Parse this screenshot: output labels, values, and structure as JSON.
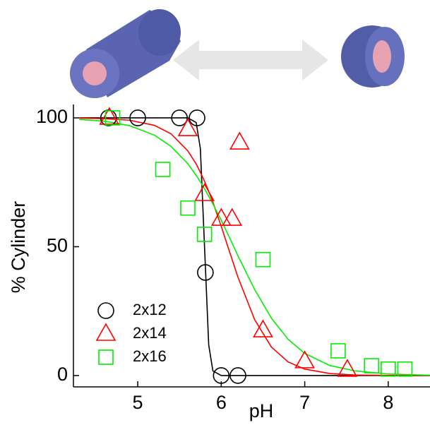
{
  "chart_data": {
    "type": "scatter",
    "xlabel": "pH",
    "ylabel": "% Cylinder",
    "xlim": [
      4.23,
      8.5
    ],
    "ylim": [
      -4.4,
      105.2
    ],
    "xticks": [
      5,
      6,
      7,
      8
    ],
    "yticks": [
      0,
      50,
      100
    ],
    "grid": false,
    "legend": "lower left",
    "series": [
      {
        "name": "2x12",
        "color": "#000000",
        "marker": "circle",
        "x": [
          4.65,
          5.0,
          5.5,
          5.71,
          5.81,
          6.0,
          6.2
        ],
        "values": [
          100,
          100,
          100,
          100,
          40,
          0,
          0
        ]
      },
      {
        "name": "2x14",
        "color": "#ff0000",
        "marker": "triangle",
        "x": [
          4.66,
          5.6,
          5.8,
          6.0,
          6.13,
          6.22,
          6.5,
          7.0,
          7.51
        ],
        "values": [
          100,
          95.6,
          70.4,
          60.8,
          60.8,
          90.4,
          17.5,
          5.5,
          2.2
        ]
      },
      {
        "name": "2x16",
        "color": "#00ee00",
        "marker": "square",
        "x": [
          4.7,
          5.3,
          5.6,
          5.8,
          6.5,
          7.4,
          7.8,
          8.0,
          8.2
        ],
        "values": [
          100,
          80,
          65,
          54.8,
          45,
          9.6,
          3.8,
          2.5,
          2.5
        ]
      }
    ],
    "fits": [
      {
        "color": "#000000",
        "x": [
          4.3,
          4.6,
          4.9,
          5.2,
          5.4,
          5.6,
          5.7,
          5.75,
          5.8,
          5.85,
          5.9,
          6.0,
          6.1,
          6.2,
          6.4,
          6.6,
          6.8,
          7.0,
          7.3,
          7.6,
          8.0,
          8.5
        ],
        "values": [
          100,
          100,
          100,
          100,
          100,
          100,
          98.2,
          88.1,
          50,
          11.9,
          1.8,
          0,
          0,
          0,
          0,
          0,
          0,
          0,
          0,
          0,
          0,
          0
        ]
      },
      {
        "color": "#ff0000",
        "x": [
          4.3,
          4.6,
          4.9,
          5.2,
          5.4,
          5.6,
          5.7,
          5.75,
          5.8,
          5.85,
          5.9,
          6.0,
          6.1,
          6.2,
          6.4,
          6.6,
          6.8,
          7.0,
          7.3,
          7.6,
          8.0,
          8.5
        ],
        "values": [
          99.9,
          99.7,
          99.1,
          97.1,
          93.8,
          87.2,
          82.1,
          78.9,
          75.4,
          71.5,
          67.3,
          57.9,
          48.0,
          38.2,
          21.7,
          11.1,
          5.3,
          2.5,
          0.8,
          0.2,
          0.05,
          0
        ]
      },
      {
        "color": "#00ee00",
        "x": [
          4.3,
          4.6,
          4.9,
          5.2,
          5.4,
          5.6,
          5.7,
          5.75,
          5.8,
          5.85,
          5.9,
          6.0,
          6.1,
          6.2,
          6.4,
          6.6,
          6.8,
          7.0,
          7.3,
          7.6,
          8.0,
          8.5
        ],
        "values": [
          99.4,
          98.7,
          97.0,
          93.3,
          88.9,
          82.2,
          77.7,
          75.2,
          72.5,
          69.6,
          66.6,
          60.3,
          53.5,
          46.5,
          33.4,
          22.3,
          14.1,
          8.6,
          3.9,
          1.8,
          0.6,
          0.1
        ]
      }
    ]
  }
}
